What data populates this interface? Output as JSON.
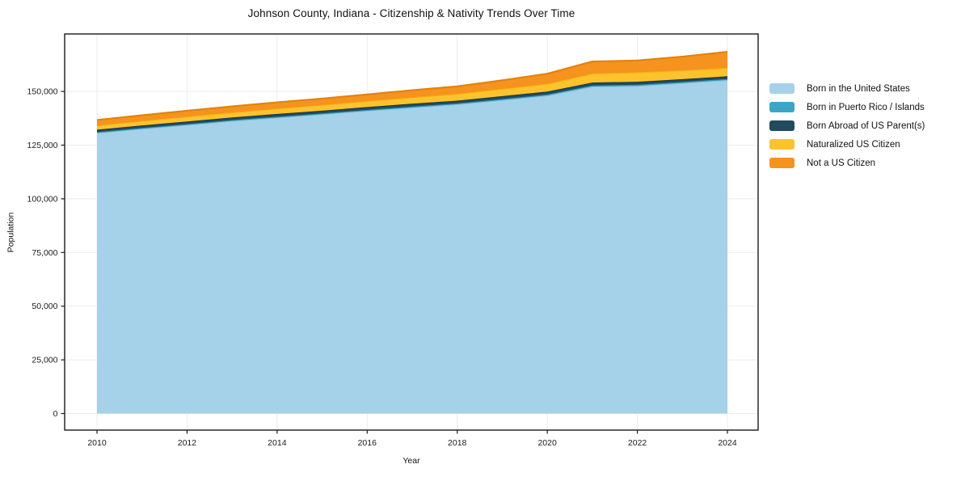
{
  "chart_data": {
    "type": "area",
    "stacked": true,
    "title": "Johnson County, Indiana - Citizenship & Nativity Trends Over Time",
    "xlabel": "Year",
    "ylabel": "Population",
    "x": [
      2010,
      2011,
      2012,
      2013,
      2014,
      2015,
      2016,
      2017,
      2018,
      2019,
      2020,
      2021,
      2022,
      2023,
      2024
    ],
    "series": [
      {
        "name": "Born in the United States",
        "color": "#a5d2e8",
        "edge_color": "#8cc1dc",
        "values": [
          130700,
          132600,
          134400,
          136300,
          137800,
          139400,
          141000,
          142500,
          144000,
          146000,
          148100,
          152300,
          152600,
          153900,
          155300
        ]
      },
      {
        "name": "Born in Puerto Rico / Islands",
        "color": "#3ba5c6",
        "edge_color": "#2d92b5",
        "values": [
          350,
          380,
          400,
          380,
          420,
          400,
          430,
          450,
          420,
          450,
          480,
          500,
          520,
          510,
          530
        ]
      },
      {
        "name": "Born Abroad of US Parent(s)",
        "color": "#204a5e",
        "edge_color": "#16394a",
        "values": [
          1150,
          1200,
          1250,
          1200,
          1300,
          1250,
          1300,
          1350,
          1300,
          1350,
          1400,
          1350,
          1400,
          1300,
          1250
        ]
      },
      {
        "name": "Naturalized US Citizen",
        "color": "#fdc32d",
        "edge_color": "#edb112",
        "values": [
          1950,
          2100,
          2250,
          2350,
          2500,
          2650,
          2800,
          3000,
          3200,
          3400,
          3600,
          4200,
          4400,
          4100,
          3900
        ]
      },
      {
        "name": "Not a US Citizen",
        "color": "#f6921e",
        "edge_color": "#e2810a",
        "values": [
          2550,
          2650,
          2750,
          2850,
          2950,
          3000,
          3100,
          3300,
          3500,
          4000,
          4700,
          5600,
          5500,
          6400,
          7500
        ]
      }
    ],
    "xticks": [
      2010,
      2012,
      2014,
      2016,
      2018,
      2020,
      2022,
      2024
    ],
    "yticks": [
      0,
      25000,
      50000,
      75000,
      100000,
      125000,
      150000
    ],
    "ytick_labels": [
      "0",
      "25,000",
      "50,000",
      "75,000",
      "100,000",
      "125,000",
      "150,000"
    ],
    "ylim": [
      0,
      176700
    ],
    "xlim": [
      2010,
      2024
    ],
    "grid": true,
    "grid_color": "#ececec",
    "axis_color": "#1a1a1a",
    "legend_position": "right"
  }
}
